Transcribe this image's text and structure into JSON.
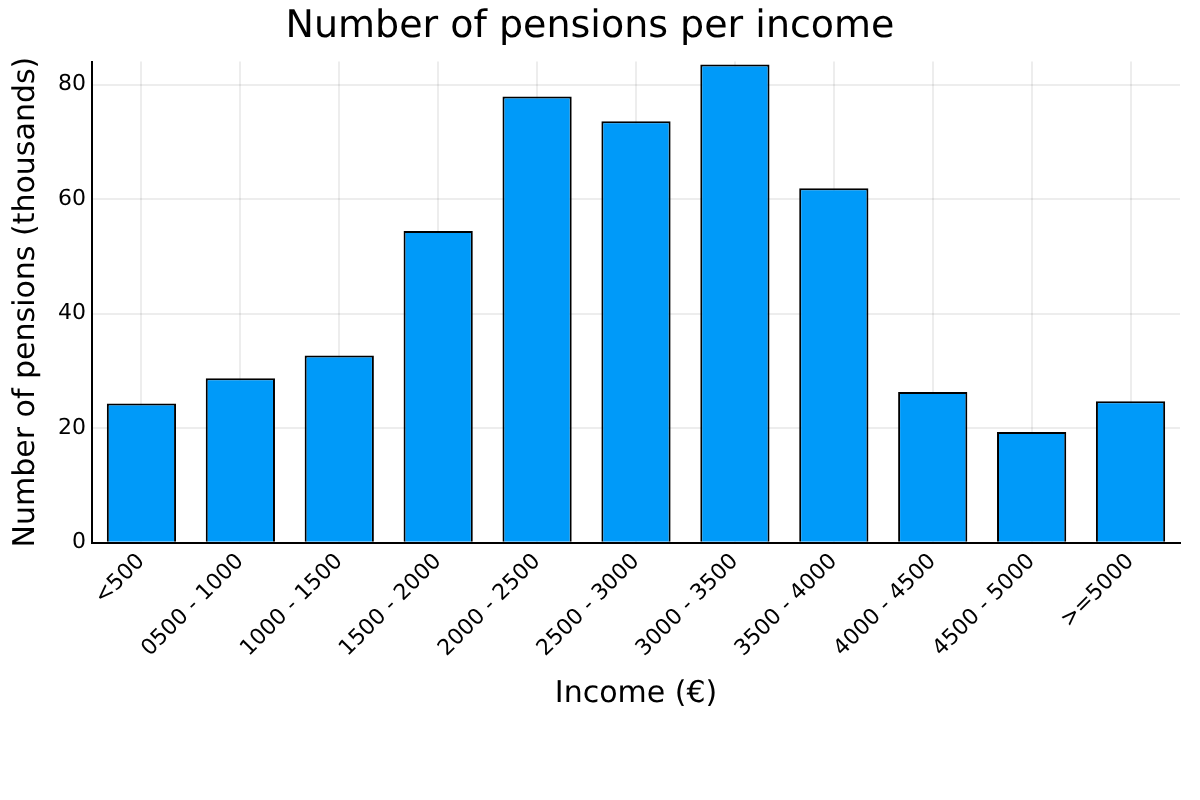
{
  "chart_data": {
    "type": "bar",
    "title": "Number of pensions per income",
    "xlabel": "Income (€)",
    "ylabel": "Number of pensions (thousands)",
    "categories": [
      "<500",
      "0500 - 1000",
      "1000 - 1500",
      "1500 - 2000",
      "2000 - 2500",
      "2500 - 3000",
      "3000 - 3500",
      "3500 - 4000",
      "4000 - 4500",
      "4500 - 5000",
      ">=5000"
    ],
    "values": [
      24.3,
      28.7,
      32.7,
      54.4,
      77.9,
      73.6,
      83.5,
      61.9,
      26.3,
      19.3,
      24.7
    ],
    "color": "#009af9",
    "ylim": [
      0,
      84
    ],
    "yticks": [
      0,
      20,
      40,
      60,
      80
    ],
    "grid": true,
    "legend": false
  }
}
